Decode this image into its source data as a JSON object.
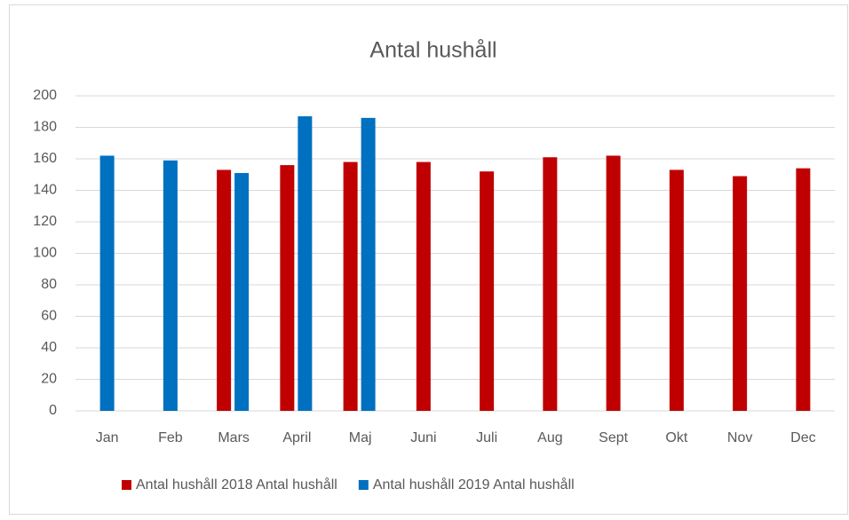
{
  "chart_data": {
    "type": "bar",
    "title": "Antal hushåll",
    "categories": [
      "Jan",
      "Feb",
      "Mars",
      "April",
      "Maj",
      "Juni",
      "Juli",
      "Aug",
      "Sept",
      "Okt",
      "Nov",
      "Dec"
    ],
    "series": [
      {
        "name": "Antal hushåll 2018 Antal hushåll",
        "color": "#c00000",
        "values": [
          null,
          null,
          153,
          156,
          158,
          158,
          152,
          161,
          162,
          153,
          149,
          154
        ]
      },
      {
        "name": "Antal hushåll 2019 Antal hushåll",
        "color": "#0070c0",
        "values": [
          162,
          159,
          151,
          187,
          186,
          null,
          null,
          null,
          null,
          null,
          null,
          null
        ]
      }
    ],
    "ylim": [
      0,
      200
    ],
    "yticks": [
      0,
      20,
      40,
      60,
      80,
      100,
      120,
      140,
      160,
      180,
      200
    ],
    "grid": true,
    "legend": "bottom"
  }
}
